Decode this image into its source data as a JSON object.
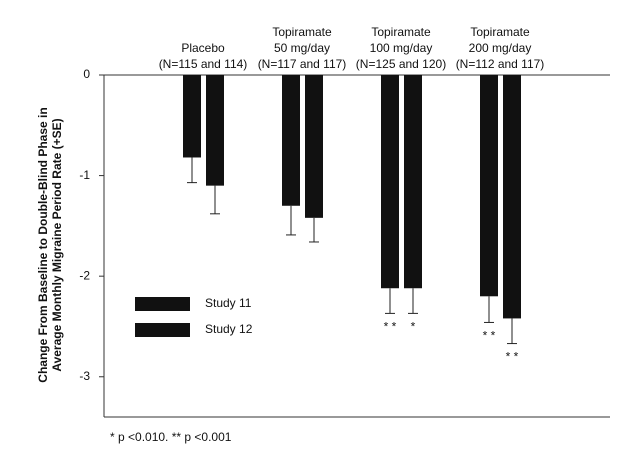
{
  "chart_data": {
    "type": "bar",
    "y_label": [
      "Change From Baseline to Double-Blind Phase in",
      "Average Monthly Migraine Period Rate (+SE)"
    ],
    "categories": [
      [
        "Placebo",
        "(N=115 and 114)"
      ],
      [
        "Topiramate",
        "50 mg/day",
        "(N=117 and 117)"
      ],
      [
        "Topiramate",
        "100 mg/day",
        "(N=125 and 120)"
      ],
      [
        "Topiramate",
        "200 mg/day",
        "(N=112 and 117)"
      ]
    ],
    "series": [
      {
        "name": "Study 11",
        "color": "#111111",
        "values": [
          -0.82,
          -1.3,
          -2.12,
          -2.2
        ],
        "errors": [
          0.25,
          0.29,
          0.25,
          0.26
        ],
        "markers": [
          null,
          null,
          "* *",
          "* *"
        ]
      },
      {
        "name": "Study 12",
        "color": "#111111",
        "values": [
          -1.1,
          -1.42,
          -2.12,
          -2.42
        ],
        "errors": [
          0.28,
          0.24,
          0.25,
          0.25
        ],
        "markers": [
          null,
          null,
          "*",
          "* *"
        ]
      }
    ],
    "ylim": [
      -3.4,
      0
    ],
    "yticks": [
      0,
      -1,
      -2,
      -3
    ],
    "footnote": "* p <0.010. ** p <0.001"
  }
}
